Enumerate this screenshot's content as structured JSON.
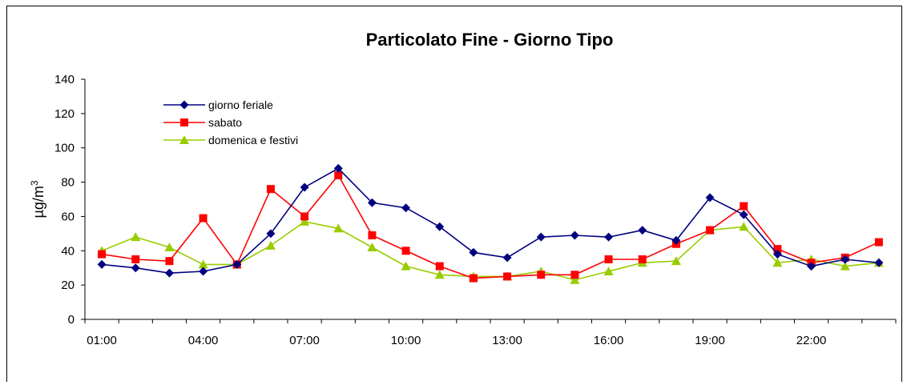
{
  "chart_data": {
    "type": "line",
    "title": "Particolato Fine - Giorno Tipo",
    "ylabel": "µg/m",
    "ylabel_sup": "3",
    "xlabel": "",
    "ylim": [
      0,
      140
    ],
    "yticks": [
      0,
      20,
      40,
      60,
      80,
      100,
      120,
      140
    ],
    "x": [
      "01:00",
      "02:00",
      "03:00",
      "04:00",
      "05:00",
      "06:00",
      "07:00",
      "08:00",
      "09:00",
      "10:00",
      "11:00",
      "12:00",
      "13:00",
      "14:00",
      "15:00",
      "16:00",
      "17:00",
      "18:00",
      "19:00",
      "20:00",
      "21:00",
      "22:00",
      "23:00",
      "24:00"
    ],
    "xtick_labels": [
      "01:00",
      "04:00",
      "07:00",
      "10:00",
      "13:00",
      "16:00",
      "19:00",
      "22:00"
    ],
    "xtick_indices": [
      0,
      3,
      6,
      9,
      12,
      15,
      18,
      21
    ],
    "grid": false,
    "legend_position": "top-left",
    "series": [
      {
        "name": "giorno feriale",
        "color": "#000080",
        "marker": "diamond",
        "values": [
          32,
          30,
          27,
          28,
          32,
          50,
          77,
          88,
          68,
          65,
          54,
          39,
          36,
          48,
          49,
          48,
          52,
          46,
          71,
          61,
          38,
          31,
          35,
          33
        ]
      },
      {
        "name": "sabato",
        "color": "#ff0000",
        "marker": "square",
        "values": [
          38,
          35,
          34,
          59,
          32,
          76,
          60,
          84,
          49,
          40,
          31,
          24,
          25,
          26,
          26,
          35,
          35,
          44,
          52,
          66,
          41,
          33,
          36,
          45
        ]
      },
      {
        "name": "domenica e festivi",
        "color": "#99cc00",
        "marker": "triangle",
        "values": [
          40,
          48,
          42,
          32,
          32,
          43,
          57,
          53,
          42,
          31,
          26,
          25,
          25,
          28,
          23,
          28,
          33,
          34,
          52,
          54,
          33,
          35,
          31,
          33
        ]
      }
    ]
  }
}
